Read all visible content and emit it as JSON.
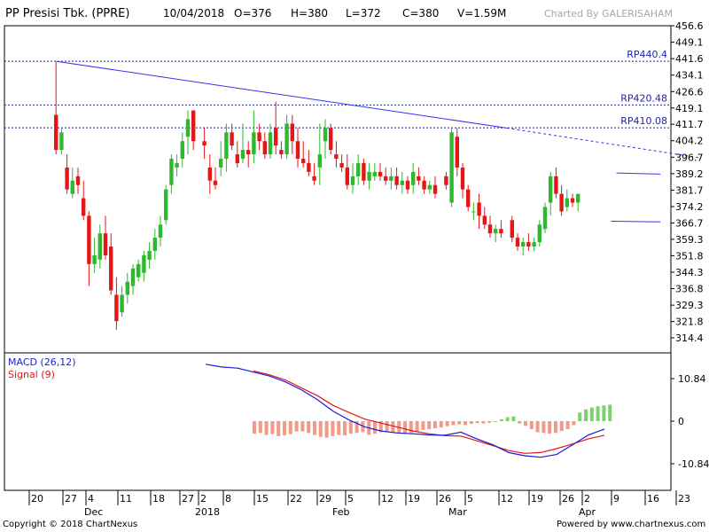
{
  "header": {
    "title": "PP Presisi Tbk. (PPRE)",
    "date": "10/04/2018",
    "open": "O=376",
    "high": "H=380",
    "low": "L=372",
    "close": "C=380",
    "volume": "V=1.59M",
    "credit": "Charted By GALERISAHAM"
  },
  "footer": {
    "copyright": "Copyright © 2018 ChartNexus",
    "powered": "Powered by www.chartnexus.com"
  },
  "colors": {
    "up": "#2db82d",
    "down": "#e51616",
    "macd": "#1a1adc",
    "signal": "#e51616",
    "trend": "#3333ee",
    "grid": "#2222aa"
  },
  "chart_data": [
    {
      "type": "candlestick",
      "y_ticks": [
        "456.6",
        "449.1",
        "441.6",
        "434.1",
        "426.6",
        "419.1",
        "411.7",
        "404.2",
        "396.7",
        "389.2",
        "381.7",
        "374.2",
        "366.7",
        "359.3",
        "351.8",
        "344.3",
        "336.8",
        "329.3",
        "321.8",
        "314.4"
      ],
      "x_ticks": [
        "20",
        "27",
        "4",
        "11",
        "18",
        "27",
        "2",
        "8",
        "15",
        "22",
        "29",
        "5",
        "12",
        "19",
        "26",
        "5",
        "12",
        "19",
        "26",
        "2",
        "9",
        "16",
        "23"
      ],
      "x_month_labels": [
        "Dec",
        "2018",
        "Feb",
        "Mar",
        "Apr"
      ],
      "levels": [
        {
          "label": "RP440.4",
          "value": 440.4
        },
        {
          "label": "RP420.48",
          "value": 420.48
        },
        {
          "label": "RP410.08",
          "value": 410.08
        }
      ],
      "trendline": {
        "from": [
          1,
          440.4
        ],
        "to": [
          83,
          410.0
        ],
        "extend_to": [
          118,
          396.5
        ]
      },
      "channel": {
        "upper": [
          [
            103,
            389.5
          ],
          [
            111,
            389.0
          ]
        ],
        "lower": [
          [
            102,
            367.5
          ],
          [
            111,
            367.2
          ]
        ]
      },
      "candles": [
        [
          0,
          0,
          0,
          0
        ],
        [
          416,
          440,
          398,
          400
        ],
        [
          400,
          410,
          398,
          408
        ],
        [
          392,
          398,
          380,
          382
        ],
        [
          380,
          392,
          378,
          386
        ],
        [
          388,
          392,
          380,
          384
        ],
        [
          378,
          386,
          368,
          370
        ],
        [
          370,
          372,
          338,
          348
        ],
        [
          348,
          360,
          344,
          352
        ],
        [
          350,
          366,
          346,
          362
        ],
        [
          362,
          370,
          350,
          352
        ],
        [
          356,
          362,
          334,
          336
        ],
        [
          334,
          342,
          318,
          322
        ],
        [
          326,
          338,
          324,
          334
        ],
        [
          334,
          344,
          330,
          340
        ],
        [
          338,
          348,
          334,
          346
        ],
        [
          342,
          350,
          340,
          348
        ],
        [
          344,
          354,
          340,
          352
        ],
        [
          350,
          358,
          346,
          354
        ],
        [
          354,
          364,
          350,
          360
        ],
        [
          360,
          370,
          356,
          366
        ],
        [
          368,
          384,
          366,
          382
        ],
        [
          384,
          398,
          380,
          396
        ],
        [
          392,
          398,
          388,
          394
        ],
        [
          396,
          408,
          392,
          404
        ],
        [
          406,
          418,
          398,
          414
        ],
        [
          418,
          418,
          400,
          404
        ],
        [
          0,
          0,
          0,
          0
        ],
        [
          404,
          410,
          396,
          402
        ],
        [
          392,
          398,
          380,
          386
        ],
        [
          386,
          392,
          382,
          384
        ],
        [
          392,
          404,
          388,
          396
        ],
        [
          396,
          412,
          390,
          408
        ],
        [
          408,
          412,
          400,
          402
        ],
        [
          398,
          404,
          392,
          394
        ],
        [
          396,
          412,
          394,
          400
        ],
        [
          400,
          404,
          392,
          398
        ],
        [
          398,
          418,
          394,
          408
        ],
        [
          408,
          412,
          400,
          404
        ],
        [
          404,
          408,
          396,
          398
        ],
        [
          398,
          412,
          396,
          408
        ],
        [
          410,
          422,
          398,
          402
        ],
        [
          400,
          404,
          396,
          398
        ],
        [
          398,
          416,
          396,
          412
        ],
        [
          412,
          416,
          398,
          404
        ],
        [
          404,
          410,
          392,
          396
        ],
        [
          396,
          404,
          392,
          394
        ],
        [
          394,
          400,
          388,
          390
        ],
        [
          388,
          394,
          384,
          386
        ],
        [
          392,
          412,
          384,
          398
        ],
        [
          404,
          414,
          396,
          410
        ],
        [
          410,
          412,
          398,
          400
        ],
        [
          398,
          404,
          392,
          396
        ],
        [
          394,
          398,
          390,
          392
        ],
        [
          392,
          398,
          382,
          384
        ],
        [
          384,
          394,
          380,
          388
        ],
        [
          388,
          398,
          384,
          394
        ],
        [
          394,
          396,
          384,
          386
        ],
        [
          386,
          394,
          382,
          390
        ],
        [
          388,
          394,
          386,
          390
        ],
        [
          390,
          394,
          386,
          388
        ],
        [
          388,
          392,
          384,
          386
        ],
        [
          386,
          392,
          382,
          388
        ],
        [
          388,
          392,
          382,
          384
        ],
        [
          384,
          390,
          380,
          386
        ],
        [
          386,
          388,
          380,
          382
        ],
        [
          384,
          394,
          380,
          390
        ],
        [
          388,
          392,
          384,
          386
        ],
        [
          386,
          388,
          380,
          382
        ],
        [
          382,
          386,
          380,
          384
        ],
        [
          384,
          388,
          378,
          380
        ],
        [
          0,
          0,
          0,
          0
        ],
        [
          388,
          390,
          382,
          384
        ],
        [
          376,
          410,
          374,
          408
        ],
        [
          406,
          410,
          388,
          392
        ],
        [
          392,
          394,
          378,
          382
        ],
        [
          382,
          384,
          372,
          374
        ],
        [
          372,
          376,
          368,
          372
        ],
        [
          376,
          380,
          364,
          370
        ],
        [
          370,
          374,
          364,
          366
        ],
        [
          366,
          370,
          360,
          362
        ],
        [
          362,
          366,
          358,
          364
        ],
        [
          364,
          368,
          360,
          362
        ],
        [
          0,
          0,
          0,
          0
        ],
        [
          368,
          370,
          358,
          360
        ],
        [
          360,
          362,
          354,
          356
        ],
        [
          356,
          360,
          352,
          358
        ],
        [
          358,
          362,
          354,
          356
        ],
        [
          356,
          360,
          354,
          358
        ],
        [
          358,
          368,
          356,
          366
        ],
        [
          364,
          376,
          362,
          374
        ],
        [
          376,
          390,
          370,
          388
        ],
        [
          388,
          392,
          378,
          380
        ],
        [
          380,
          384,
          370,
          372
        ],
        [
          374,
          382,
          372,
          378
        ],
        [
          378,
          380,
          374,
          376
        ],
        [
          376,
          380,
          372,
          380
        ]
      ]
    },
    {
      "type": "line_bar",
      "legend": [
        {
          "label": "MACD (26,12)",
          "color": "#1a1adc"
        },
        {
          "label": "Signal (9)",
          "color": "#e51616"
        }
      ],
      "y_ticks": [
        {
          "label": "10.84",
          "value": 10.84
        },
        {
          "label": "0",
          "value": 0
        },
        {
          "label": "-10.84",
          "value": -10.84
        }
      ],
      "macd": [
        [
          35,
          14.5
        ],
        [
          40,
          13.8
        ],
        [
          45,
          13.5
        ],
        [
          50,
          12.5
        ],
        [
          55,
          11.5
        ],
        [
          60,
          10.0
        ],
        [
          65,
          8.0
        ],
        [
          70,
          5.5
        ],
        [
          75,
          2.5
        ],
        [
          80,
          0.3
        ],
        [
          85,
          -1.5
        ],
        [
          90,
          -2.5
        ],
        [
          95,
          -3.0
        ],
        [
          100,
          -3.2
        ],
        [
          105,
          -3.5
        ],
        [
          110,
          -3.6
        ],
        [
          115,
          -2.8
        ],
        [
          120,
          -4.5
        ],
        [
          125,
          -6.0
        ],
        [
          130,
          -8.0
        ],
        [
          135,
          -8.8
        ],
        [
          140,
          -9.2
        ],
        [
          145,
          -8.5
        ],
        [
          150,
          -6.0
        ],
        [
          155,
          -3.5
        ],
        [
          160,
          -2.0
        ]
      ],
      "signal": [
        [
          50,
          12.8
        ],
        [
          55,
          11.8
        ],
        [
          60,
          10.5
        ],
        [
          65,
          8.5
        ],
        [
          70,
          6.5
        ],
        [
          75,
          4.0
        ],
        [
          80,
          2.2
        ],
        [
          85,
          0.5
        ],
        [
          90,
          -0.5
        ],
        [
          95,
          -1.5
        ],
        [
          100,
          -2.5
        ],
        [
          105,
          -3.2
        ],
        [
          110,
          -3.7
        ],
        [
          115,
          -3.8
        ],
        [
          120,
          -5.0
        ],
        [
          125,
          -6.2
        ],
        [
          130,
          -7.5
        ],
        [
          135,
          -8.2
        ],
        [
          140,
          -8.0
        ],
        [
          145,
          -7.0
        ],
        [
          150,
          -5.8
        ],
        [
          155,
          -4.5
        ],
        [
          160,
          -3.6
        ]
      ],
      "histogram": [
        -3.2,
        -3.0,
        -3.5,
        -3.3,
        -3.8,
        -3.6,
        -3.3,
        -2.6,
        -2.6,
        -3.0,
        -3.5,
        -4.0,
        -4.2,
        -3.8,
        -3.5,
        -3.6,
        -3.2,
        -3.0,
        -2.8,
        -3.5,
        -3.2,
        -2.8,
        -2.6,
        -2.8,
        -3.0,
        -3.2,
        -3.0,
        -2.6,
        -2.2,
        -2.0,
        -1.8,
        -1.6,
        -1.3,
        -1.0,
        -0.8,
        -1.0,
        -0.7,
        -0.5,
        -0.6,
        -0.4,
        -0.2,
        0.5,
        1.0,
        1.2,
        -0.6,
        -1.2,
        -2.0,
        -2.8,
        -3.0,
        -3.2,
        -3.0,
        -2.5,
        -2.0,
        -1.0,
        2.2,
        3.0,
        3.5,
        3.8,
        4.0,
        4.2
      ]
    }
  ]
}
